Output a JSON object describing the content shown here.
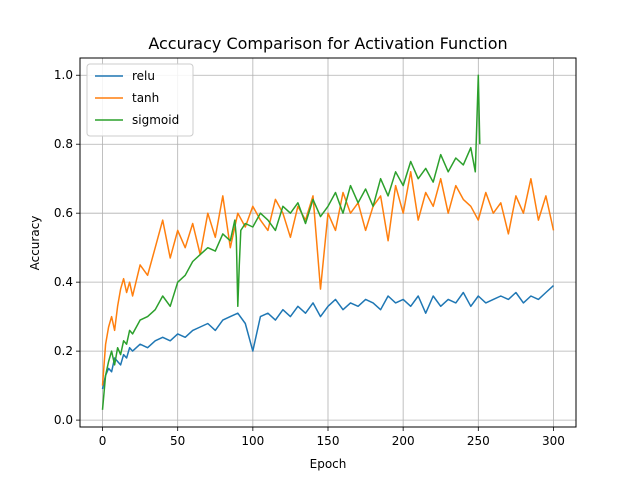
{
  "chart_data": {
    "type": "line",
    "title": "Accuracy Comparison for Activation Function",
    "xlabel": "Epoch",
    "ylabel": "Accuracy",
    "xlim": [
      -15,
      315
    ],
    "ylim": [
      -0.02,
      1.05
    ],
    "xticks": [
      0,
      50,
      100,
      150,
      200,
      250,
      300
    ],
    "yticks": [
      0.0,
      0.2,
      0.4,
      0.6,
      0.8,
      1.0
    ],
    "xtick_labels": [
      "0",
      "50",
      "100",
      "150",
      "200",
      "250",
      "300"
    ],
    "ytick_labels": [
      "0.0",
      "0.2",
      "0.4",
      "0.6",
      "0.8",
      "1.0"
    ],
    "grid": true,
    "legend_position": "top-left",
    "series": [
      {
        "name": "relu",
        "color": "#1f77b4",
        "x": [
          0,
          2,
          4,
          6,
          8,
          10,
          12,
          14,
          16,
          18,
          20,
          25,
          30,
          35,
          40,
          45,
          50,
          55,
          60,
          65,
          70,
          75,
          80,
          85,
          90,
          95,
          100,
          105,
          110,
          115,
          120,
          125,
          130,
          135,
          140,
          145,
          150,
          155,
          160,
          165,
          170,
          175,
          180,
          185,
          190,
          195,
          200,
          205,
          210,
          215,
          220,
          225,
          230,
          235,
          240,
          245,
          250,
          255,
          260,
          265,
          270,
          275,
          280,
          285,
          290,
          295,
          300
        ],
        "y": [
          0.09,
          0.13,
          0.15,
          0.14,
          0.18,
          0.17,
          0.16,
          0.19,
          0.18,
          0.21,
          0.2,
          0.22,
          0.21,
          0.23,
          0.24,
          0.23,
          0.25,
          0.24,
          0.26,
          0.27,
          0.28,
          0.26,
          0.29,
          0.3,
          0.31,
          0.28,
          0.2,
          0.3,
          0.31,
          0.29,
          0.32,
          0.3,
          0.33,
          0.31,
          0.34,
          0.3,
          0.33,
          0.35,
          0.32,
          0.34,
          0.33,
          0.35,
          0.34,
          0.32,
          0.36,
          0.34,
          0.35,
          0.33,
          0.36,
          0.31,
          0.36,
          0.33,
          0.35,
          0.34,
          0.37,
          0.33,
          0.36,
          0.34,
          0.35,
          0.36,
          0.35,
          0.37,
          0.34,
          0.36,
          0.35,
          0.37,
          0.39
        ]
      },
      {
        "name": "tanh",
        "color": "#ff7f0e",
        "x": [
          0,
          2,
          4,
          6,
          8,
          10,
          12,
          14,
          16,
          18,
          20,
          25,
          30,
          35,
          40,
          45,
          50,
          55,
          60,
          65,
          70,
          75,
          80,
          85,
          90,
          95,
          100,
          105,
          110,
          115,
          120,
          125,
          130,
          135,
          140,
          145,
          150,
          155,
          160,
          165,
          170,
          175,
          180,
          185,
          190,
          195,
          200,
          205,
          210,
          215,
          220,
          225,
          230,
          235,
          240,
          245,
          250,
          255,
          260,
          265,
          270,
          275,
          280,
          285,
          290,
          295,
          300
        ],
        "y": [
          0.1,
          0.22,
          0.27,
          0.3,
          0.26,
          0.33,
          0.38,
          0.41,
          0.37,
          0.4,
          0.36,
          0.45,
          0.42,
          0.5,
          0.58,
          0.47,
          0.55,
          0.5,
          0.57,
          0.48,
          0.6,
          0.53,
          0.65,
          0.5,
          0.6,
          0.56,
          0.62,
          0.58,
          0.55,
          0.64,
          0.6,
          0.53,
          0.62,
          0.58,
          0.65,
          0.38,
          0.6,
          0.55,
          0.66,
          0.6,
          0.63,
          0.55,
          0.62,
          0.65,
          0.52,
          0.68,
          0.6,
          0.72,
          0.58,
          0.66,
          0.62,
          0.7,
          0.6,
          0.68,
          0.64,
          0.62,
          0.58,
          0.66,
          0.6,
          0.63,
          0.54,
          0.65,
          0.6,
          0.7,
          0.58,
          0.65,
          0.55
        ]
      },
      {
        "name": "sigmoid",
        "color": "#2ca02c",
        "x": [
          0,
          2,
          4,
          6,
          8,
          10,
          12,
          14,
          16,
          18,
          20,
          25,
          30,
          35,
          40,
          45,
          50,
          55,
          60,
          65,
          70,
          75,
          80,
          85,
          88,
          89,
          90,
          91,
          92,
          95,
          100,
          105,
          110,
          115,
          120,
          125,
          130,
          135,
          140,
          145,
          150,
          155,
          160,
          165,
          170,
          175,
          180,
          185,
          190,
          195,
          200,
          205,
          210,
          215,
          220,
          225,
          230,
          235,
          240,
          245,
          248,
          250,
          251
        ],
        "y": [
          0.03,
          0.13,
          0.17,
          0.2,
          0.16,
          0.21,
          0.19,
          0.23,
          0.22,
          0.26,
          0.25,
          0.29,
          0.3,
          0.32,
          0.36,
          0.33,
          0.4,
          0.42,
          0.46,
          0.48,
          0.5,
          0.49,
          0.54,
          0.52,
          0.58,
          0.53,
          0.33,
          0.45,
          0.55,
          0.57,
          0.56,
          0.6,
          0.58,
          0.55,
          0.62,
          0.6,
          0.63,
          0.57,
          0.64,
          0.59,
          0.62,
          0.66,
          0.6,
          0.68,
          0.63,
          0.67,
          0.62,
          0.7,
          0.65,
          0.72,
          0.68,
          0.75,
          0.7,
          0.73,
          0.69,
          0.77,
          0.72,
          0.76,
          0.74,
          0.79,
          0.72,
          1.0,
          0.8
        ]
      }
    ]
  }
}
